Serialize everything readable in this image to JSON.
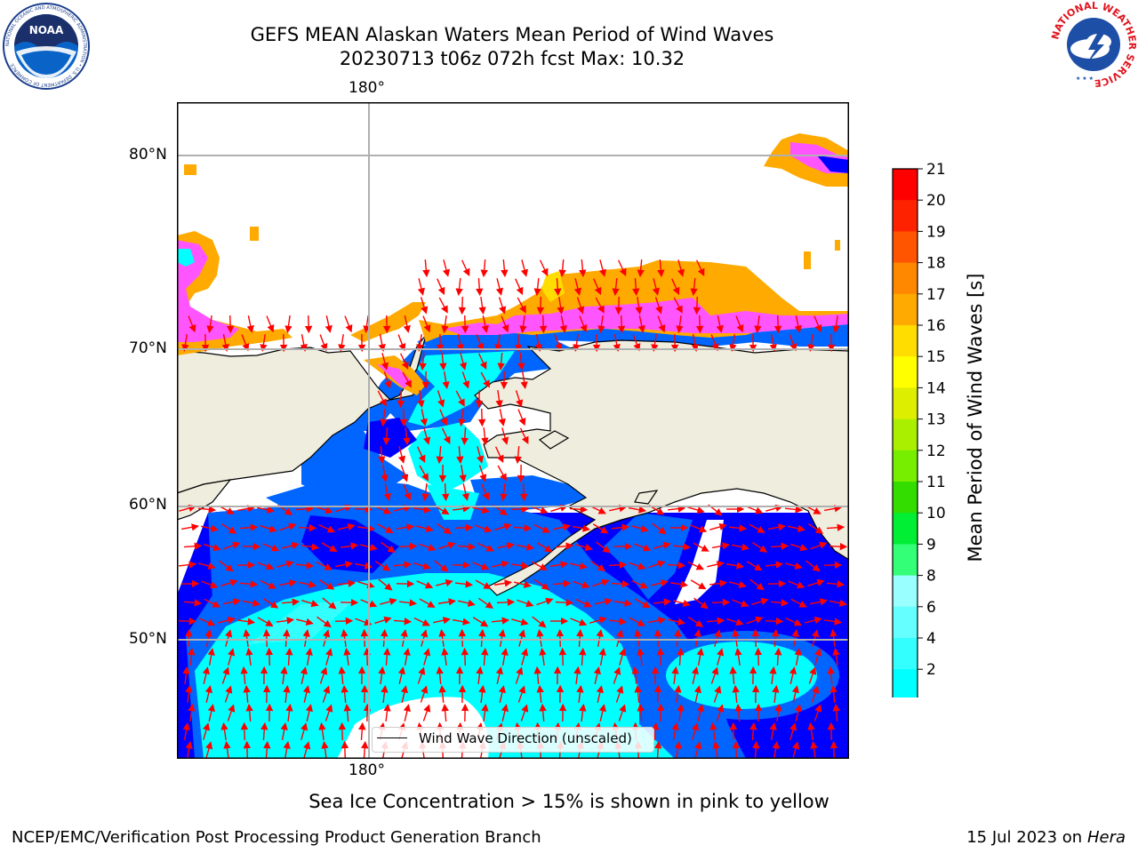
{
  "title": {
    "line1": "GEFS MEAN Alaskan Waters Mean Period of Wind Waves",
    "line2": "20230713 t06z 072h fcst   Max: 10.32"
  },
  "map": {
    "lon_labels": [
      "180°",
      "180°"
    ],
    "lat_labels": [
      "80°N",
      "70°N",
      "60°N",
      "50°N"
    ],
    "legend_label": "Wind Wave Direction (unscaled)",
    "caption": "Sea Ice Concentration > 15% is shown in pink to yellow",
    "land_color": "#efedde",
    "arrow_color": "#ff0000"
  },
  "colorbar": {
    "label": "Mean Period of Wind Waves [s]",
    "ticks": [
      "2",
      "4",
      "6",
      "8",
      "9",
      "10",
      "11",
      "12",
      "13",
      "14",
      "15",
      "16",
      "17",
      "18",
      "19",
      "20",
      "21"
    ],
    "colors": [
      "#0066ff",
      "#00ffff",
      "#33ffff",
      "#66ffff",
      "#99ffff",
      "#33ff77",
      "#00ee33",
      "#33dd00",
      "#77ee00",
      "#aaee00",
      "#ddee00",
      "#ffff00",
      "#ffdd00",
      "#ffaa00",
      "#ff8800",
      "#ff5500",
      "#ff2200",
      "#ff0000"
    ],
    "extend_color": "#0000ff"
  },
  "footer": {
    "left": "NCEP/EMC/Verification Post Processing Product Generation Branch",
    "date": "15 Jul 2023 on",
    "machine": "Hera"
  },
  "logos": {
    "left": "NOAA",
    "left_ring": "NATIONAL OCEANIC AND ATMOSPHERIC ADMINISTRATION • U.S. DEPARTMENT OF COMMERCE",
    "right_ring": "NATIONAL WEATHER SERVICE"
  }
}
